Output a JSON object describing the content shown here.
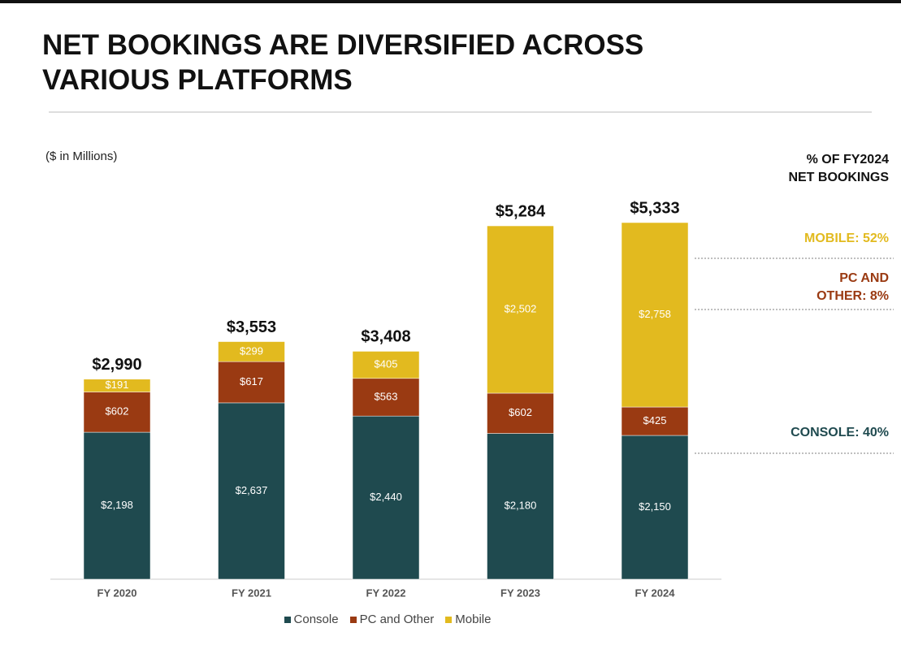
{
  "chart_data": {
    "type": "stacked_bar",
    "title": "NET BOOKINGS ARE DIVERSIFIED ACROSS VARIOUS PLATFORMS",
    "subtitle": "($ in Millions)",
    "categories": [
      "FY 2020",
      "FY 2021",
      "FY 2022",
      "FY 2023",
      "FY 2024"
    ],
    "series": [
      {
        "name": "Console",
        "color": "#1f4a4f",
        "values": [
          2198,
          2637,
          2440,
          2180,
          2150
        ],
        "value_labels": [
          "$2,198",
          "$2,637",
          "$2,440",
          "$2,180",
          "$2,150"
        ]
      },
      {
        "name": "PC and Other",
        "color": "#9a3a12",
        "values": [
          602,
          617,
          563,
          602,
          425
        ],
        "value_labels": [
          "$602",
          "$617",
          "$563",
          "$602",
          "$425"
        ]
      },
      {
        "name": "Mobile",
        "color": "#e2ba1f",
        "values": [
          191,
          299,
          405,
          2502,
          2758
        ],
        "value_labels": [
          "$191",
          "$299",
          "$405",
          "$2,502",
          "$2,758"
        ]
      }
    ],
    "totals": [
      2990,
      3553,
      3408,
      5284,
      5333
    ],
    "total_labels": [
      "$2,990",
      "$3,553",
      "$3,408",
      "$5,284",
      "$5,333"
    ],
    "side_header": [
      "% OF FY2024",
      "NET BOOKINGS"
    ],
    "side_annotations": [
      {
        "lines": [
          "MOBILE: 52%"
        ],
        "color": "#e2ba1f"
      },
      {
        "lines": [
          "PC AND",
          "OTHER: 8%"
        ],
        "color": "#9a3a12"
      },
      {
        "lines": [
          "CONSOLE: 40%"
        ],
        "color": "#1f4a4f"
      }
    ]
  }
}
